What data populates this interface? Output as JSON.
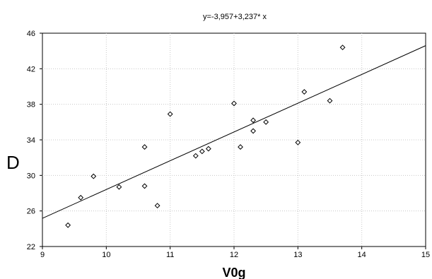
{
  "chart_data": {
    "type": "scatter",
    "title": "y=-3,957+3,237* x",
    "xlabel": "V0g",
    "ylabel": "D",
    "xlim": [
      9,
      15
    ],
    "ylim": [
      22,
      46
    ],
    "xticks": [
      9,
      10,
      11,
      12,
      13,
      14,
      15
    ],
    "yticks": [
      22,
      26,
      30,
      34,
      38,
      42,
      46
    ],
    "grid": true,
    "legend": "none",
    "regression": {
      "intercept": -3.957,
      "slope": 3.237
    },
    "points": [
      {
        "x": 9.4,
        "y": 24.4
      },
      {
        "x": 9.6,
        "y": 27.5
      },
      {
        "x": 9.8,
        "y": 29.9
      },
      {
        "x": 10.2,
        "y": 28.7
      },
      {
        "x": 10.6,
        "y": 33.2
      },
      {
        "x": 10.6,
        "y": 28.8
      },
      {
        "x": 10.8,
        "y": 26.6
      },
      {
        "x": 11.0,
        "y": 36.9
      },
      {
        "x": 11.4,
        "y": 32.2
      },
      {
        "x": 11.5,
        "y": 32.7
      },
      {
        "x": 11.6,
        "y": 33.0
      },
      {
        "x": 12.0,
        "y": 38.1
      },
      {
        "x": 12.1,
        "y": 33.2
      },
      {
        "x": 12.3,
        "y": 35.0
      },
      {
        "x": 12.3,
        "y": 36.2
      },
      {
        "x": 12.5,
        "y": 36.0
      },
      {
        "x": 13.0,
        "y": 33.7
      },
      {
        "x": 13.1,
        "y": 39.4
      },
      {
        "x": 13.5,
        "y": 38.4
      },
      {
        "x": 13.7,
        "y": 44.4
      }
    ]
  }
}
